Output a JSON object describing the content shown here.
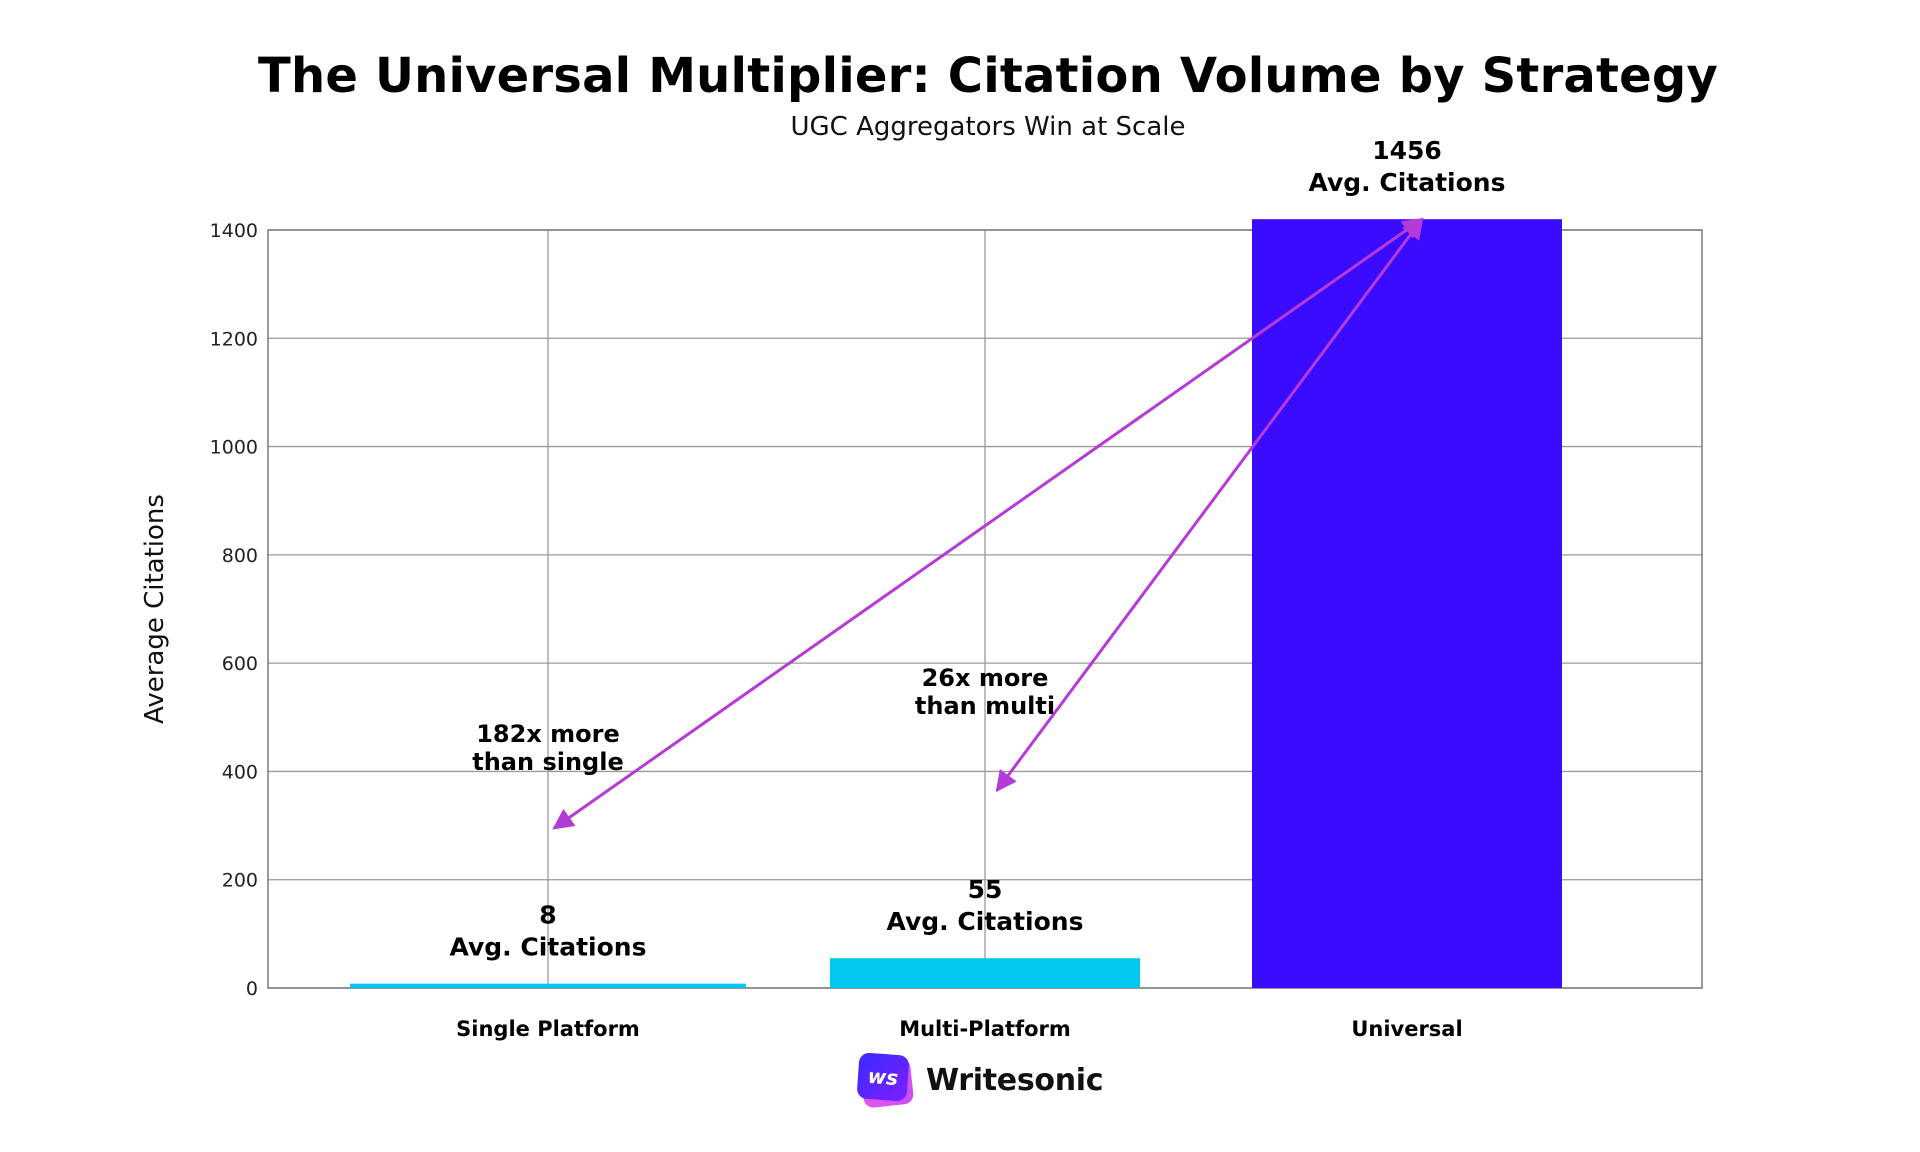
{
  "chart_data": {
    "type": "bar",
    "title": "The Universal Multiplier: Citation Volume by Strategy",
    "subtitle": "UGC Aggregators Win at Scale",
    "categories": [
      "Single Platform",
      "Multi-Platform",
      "Universal"
    ],
    "values": [
      8,
      55,
      1456
    ],
    "bar_labels": [
      "8\nAvg. Citations",
      "55\nAvg. Citations",
      "1456\nAvg. Citations"
    ],
    "colors": [
      "#00c8f0",
      "#00c8f0",
      "#3a0bff"
    ],
    "ylabel": "Average Citations",
    "xlabel": "",
    "ylim": [
      0,
      1400
    ],
    "yticks": [
      0,
      200,
      400,
      600,
      800,
      1000,
      1200,
      1400
    ],
    "grid": true,
    "annotations": [
      {
        "text": "182x more\nthan single",
        "from": [
          "Universal",
          1420
        ],
        "to": [
          "Single Platform",
          295
        ]
      },
      {
        "text": "26x more\nthan multi",
        "from": [
          "Universal",
          1420
        ],
        "to": [
          "Multi-Platform",
          365
        ]
      }
    ],
    "arrow_color": "#b53bd6"
  },
  "brand": {
    "logo_badge": "ws",
    "name": "Writesonic"
  }
}
